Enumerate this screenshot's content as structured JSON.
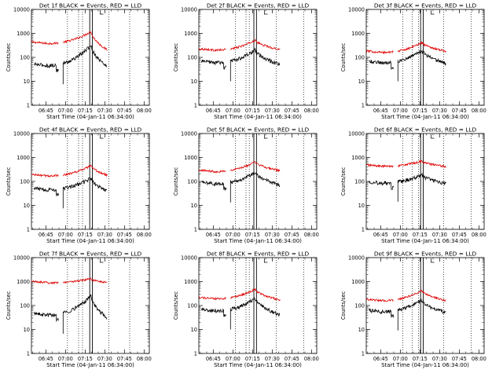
{
  "chart_data": [
    {
      "type": "line",
      "title": "Det 1f BLACK = Events, RED = LLD",
      "xlabel": "Start Time (04-Jan-11 06:34:00)",
      "ylabel": "Counts/sec",
      "yscale": "log",
      "ylim": [
        1,
        10000
      ],
      "xlim_min": [
        0,
        90
      ],
      "xticks": [
        "06:45",
        "07:00",
        "07:15",
        "07:30",
        "07:45",
        "08:00"
      ],
      "yticks": [
        "1",
        "10",
        "100",
        "1000",
        "10000"
      ],
      "start_min": 0,
      "data_end_min": 58,
      "gap_min": [
        21,
        24
      ],
      "dotted_min": [
        27.5,
        36,
        39,
        59,
        75
      ],
      "solid_min": [
        44.5,
        46.5
      ],
      "series": [
        {
          "name": "RED = LLD",
          "color": "#e00000",
          "start_offset": 0,
          "min_offset": 2,
          "min_val": 380,
          "peak_val": 1200,
          "end_val": 200,
          "peak_min": 45.5
        },
        {
          "name": "BLACK = Events",
          "color": "#000000",
          "start_offset": 2,
          "min_offset": 6,
          "min_val": 45,
          "peak_val": 320,
          "end_val": 40,
          "peak_min": 45.5
        }
      ]
    },
    {
      "type": "line",
      "title": "Det 2f BLACK = Events, RED = LLD",
      "xlabel": "Start Time (04-Jan-11 06:34:00)",
      "ylabel": "Counts/sec",
      "yscale": "log",
      "ylim": [
        1,
        10000
      ],
      "xlim_min": [
        0,
        90
      ],
      "xticks": [
        "06:45",
        "07:00",
        "07:15",
        "07:30",
        "07:45",
        "08:00"
      ],
      "yticks": [
        "1",
        "10",
        "100",
        "1000",
        "10000"
      ],
      "start_min": 0,
      "data_end_min": 62,
      "gap_min": [
        21,
        24
      ],
      "dotted_min": [
        28,
        36,
        38.5,
        59,
        80
      ],
      "solid_min": [
        42,
        44
      ],
      "series": [
        {
          "name": "RED = LLD",
          "color": "#e00000",
          "start_offset": 0,
          "min_offset": 2,
          "min_val": 200,
          "peak_val": 520,
          "end_val": 210,
          "peak_min": 43
        },
        {
          "name": "BLACK = Events",
          "color": "#000000",
          "start_offset": 2,
          "min_offset": 6,
          "min_val": 60,
          "peak_val": 200,
          "end_val": 50,
          "peak_min": 43
        }
      ]
    },
    {
      "type": "line",
      "title": "Det 3f BLACK = Events, RED = LLD",
      "xlabel": "Start Time (04-Jan-11 06:34:00)",
      "ylabel": "Counts/sec",
      "yscale": "log",
      "ylim": [
        1,
        10000
      ],
      "xlim_min": [
        0,
        90
      ],
      "xticks": [
        "06:45",
        "07:00",
        "07:15",
        "07:30",
        "07:45",
        "08:00"
      ],
      "yticks": [
        "1",
        "10",
        "100",
        "1000",
        "10000"
      ],
      "start_min": 0,
      "data_end_min": 61,
      "gap_min": [
        21,
        24
      ],
      "dotted_min": [
        28,
        35,
        40,
        59,
        80
      ],
      "solid_min": [
        41.5,
        43.5
      ],
      "series": [
        {
          "name": "RED = LLD",
          "color": "#e00000",
          "start_offset": 0,
          "min_offset": 2,
          "min_val": 160,
          "peak_val": 420,
          "end_val": 180,
          "peak_min": 42.5
        },
        {
          "name": "BLACK = Events",
          "color": "#000000",
          "start_offset": 2,
          "min_offset": 6,
          "min_val": 60,
          "peak_val": 200,
          "end_val": 55,
          "peak_min": 42.5
        }
      ]
    },
    {
      "type": "line",
      "title": "Det 4f BLACK = Events, RED = LLD",
      "xlabel": "Start Time (04-Jan-11 06:34:00)",
      "ylabel": "Counts/sec",
      "yscale": "log",
      "ylim": [
        1,
        10000
      ],
      "xlim_min": [
        0,
        90
      ],
      "xticks": [
        "06:45",
        "07:00",
        "07:15",
        "07:30",
        "07:45",
        "08:00"
      ],
      "yticks": [
        "1",
        "10",
        "100",
        "1000",
        "10000"
      ],
      "start_min": 0,
      "data_end_min": 58,
      "gap_min": [
        21,
        24
      ],
      "dotted_min": [
        27.5,
        36,
        39,
        59,
        75
      ],
      "solid_min": [
        44.5,
        46.5
      ],
      "series": [
        {
          "name": "RED = LLD",
          "color": "#e00000",
          "start_offset": 0,
          "min_offset": 2,
          "min_val": 170,
          "peak_val": 450,
          "end_val": 180,
          "peak_min": 45.5
        },
        {
          "name": "BLACK = Events",
          "color": "#000000",
          "start_offset": 2,
          "min_offset": 6,
          "min_val": 45,
          "peak_val": 140,
          "end_val": 40,
          "peak_min": 45.5
        }
      ]
    },
    {
      "type": "line",
      "title": "Det 5f BLACK = Events, RED = LLD",
      "xlabel": "Start Time (04-Jan-11 06:34:00)",
      "ylabel": "Counts/sec",
      "yscale": "log",
      "ylim": [
        1,
        10000
      ],
      "xlim_min": [
        0,
        90
      ],
      "xticks": [
        "06:45",
        "07:00",
        "07:15",
        "07:30",
        "07:45",
        "08:00"
      ],
      "yticks": [
        "1",
        "10",
        "100",
        "1000",
        "10000"
      ],
      "start_min": 0,
      "data_end_min": 62,
      "gap_min": [
        21,
        24
      ],
      "dotted_min": [
        28,
        36,
        38.5,
        59,
        80
      ],
      "solid_min": [
        42,
        44
      ],
      "series": [
        {
          "name": "RED = LLD",
          "color": "#e00000",
          "start_offset": 0,
          "min_offset": 2,
          "min_val": 260,
          "peak_val": 650,
          "end_val": 280,
          "peak_min": 43
        },
        {
          "name": "BLACK = Events",
          "color": "#000000",
          "start_offset": 2,
          "min_offset": 6,
          "min_val": 80,
          "peak_val": 240,
          "end_val": 70,
          "peak_min": 43
        }
      ]
    },
    {
      "type": "line",
      "title": "Det 6f BLACK = Events, RED = LLD",
      "xlabel": "Start Time (04-Jan-11 06:34:00)",
      "ylabel": "Counts/sec",
      "yscale": "log",
      "ylim": [
        1,
        10000
      ],
      "xlim_min": [
        0,
        90
      ],
      "xticks": [
        "06:45",
        "07:00",
        "07:15",
        "07:30",
        "07:45",
        "08:00"
      ],
      "yticks": [
        "1",
        "10",
        "100",
        "1000",
        "10000"
      ],
      "start_min": 0,
      "data_end_min": 61,
      "gap_min": [
        21,
        24
      ],
      "dotted_min": [
        28,
        35,
        40,
        59,
        80
      ],
      "solid_min": [
        41.5,
        43.5
      ],
      "series": [
        {
          "name": "RED = LLD",
          "color": "#e00000",
          "start_offset": 0,
          "min_offset": 2,
          "min_val": 430,
          "peak_val": 700,
          "end_val": 420,
          "peak_min": 42.5
        },
        {
          "name": "BLACK = Events",
          "color": "#000000",
          "start_offset": 2,
          "min_offset": 6,
          "min_val": 85,
          "peak_val": 190,
          "end_val": 80,
          "peak_min": 42.5
        }
      ]
    },
    {
      "type": "line",
      "title": "Det 7f BLACK = Events, RED = LLD",
      "xlabel": "Start Time (04-Jan-11 06:34:00)",
      "ylabel": "Counts/sec",
      "yscale": "log",
      "ylim": [
        1,
        10000
      ],
      "xlim_min": [
        0,
        90
      ],
      "xticks": [
        "06:45",
        "07:00",
        "07:15",
        "07:30",
        "07:45",
        "08:00"
      ],
      "yticks": [
        "1",
        "10",
        "100",
        "1000",
        "10000"
      ],
      "start_min": 0,
      "data_end_min": 58,
      "gap_min": [
        21,
        24
      ],
      "dotted_min": [
        27.5,
        36,
        39,
        59,
        75
      ],
      "solid_min": [
        44.5,
        46.5
      ],
      "series": [
        {
          "name": "RED = LLD",
          "color": "#e00000",
          "start_offset": 0,
          "min_offset": 2,
          "min_val": 900,
          "peak_val": 1300,
          "end_val": 900,
          "peak_min": 45.5
        },
        {
          "name": "BLACK = Events",
          "color": "#000000",
          "start_offset": 2,
          "min_offset": 6,
          "min_val": 40,
          "peak_val": 250,
          "end_val": 30,
          "peak_min": 45.5
        }
      ]
    },
    {
      "type": "line",
      "title": "Det 8f BLACK = Events, RED = LLD",
      "xlabel": "Start Time (04-Jan-11 06:34:00)",
      "ylabel": "Counts/sec",
      "yscale": "log",
      "ylim": [
        1,
        10000
      ],
      "xlim_min": [
        0,
        90
      ],
      "xticks": [
        "06:45",
        "07:00",
        "07:15",
        "07:30",
        "07:45",
        "08:00"
      ],
      "yticks": [
        "1",
        "10",
        "100",
        "1000",
        "10000"
      ],
      "start_min": 0,
      "data_end_min": 62,
      "gap_min": [
        21,
        24
      ],
      "dotted_min": [
        28,
        36,
        38.5,
        59,
        80
      ],
      "solid_min": [
        42,
        44
      ],
      "series": [
        {
          "name": "RED = LLD",
          "color": "#e00000",
          "start_offset": 0,
          "min_offset": 2,
          "min_val": 190,
          "peak_val": 480,
          "end_val": 170,
          "peak_min": 43
        },
        {
          "name": "BLACK = Events",
          "color": "#000000",
          "start_offset": 2,
          "min_offset": 6,
          "min_val": 60,
          "peak_val": 200,
          "end_val": 40,
          "peak_min": 43
        }
      ]
    },
    {
      "type": "line",
      "title": "Det 9f BLACK = Events, RED = LLD",
      "xlabel": "Start Time (04-Jan-11 06:34:00)",
      "ylabel": "Counts/sec",
      "yscale": "log",
      "ylim": [
        1,
        10000
      ],
      "xlim_min": [
        0,
        90
      ],
      "xticks": [
        "06:45",
        "07:00",
        "07:15",
        "07:30",
        "07:45",
        "08:00"
      ],
      "yticks": [
        "1",
        "10",
        "100",
        "1000",
        "10000"
      ],
      "start_min": 0,
      "data_end_min": 61,
      "gap_min": [
        21,
        24
      ],
      "dotted_min": [
        28,
        35,
        40,
        59,
        80
      ],
      "solid_min": [
        41.5,
        43.5
      ],
      "series": [
        {
          "name": "RED = LLD",
          "color": "#e00000",
          "start_offset": 0,
          "min_offset": 2,
          "min_val": 160,
          "peak_val": 420,
          "end_val": 160,
          "peak_min": 42.5
        },
        {
          "name": "BLACK = Events",
          "color": "#000000",
          "start_offset": 2,
          "min_offset": 6,
          "min_val": 55,
          "peak_val": 170,
          "end_val": 50,
          "peak_min": 42.5
        }
      ]
    }
  ]
}
